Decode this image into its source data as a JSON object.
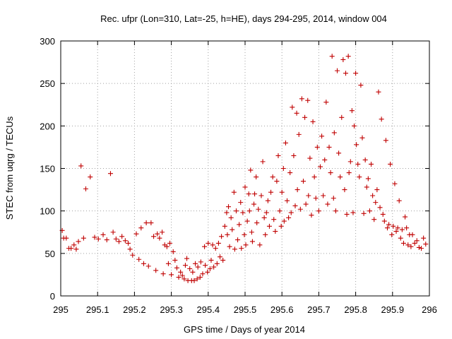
{
  "chart_data": {
    "type": "scatter",
    "title": "Rec. ufpr (Lon=310, Lat=-25, h=HE), days 294-295, 2014, window 004",
    "xlabel": "GPS time / Days of year 2014",
    "ylabel": "STEC from uqrg / TECUs",
    "xlim": [
      295,
      296
    ],
    "ylim": [
      0,
      300
    ],
    "xticks": [
      "295",
      "295.1",
      "295.2",
      "295.3",
      "295.4",
      "295.5",
      "295.6",
      "295.7",
      "295.8",
      "295.9",
      "296"
    ],
    "yticks": [
      "0",
      "50",
      "100",
      "150",
      "200",
      "250",
      "300"
    ],
    "grid": true,
    "marker": "+",
    "color": "#c00000",
    "points": [
      [
        295.004,
        77
      ],
      [
        295.008,
        68
      ],
      [
        295.015,
        68
      ],
      [
        295.022,
        56
      ],
      [
        295.028,
        56
      ],
      [
        295.036,
        60
      ],
      [
        295.042,
        55
      ],
      [
        295.048,
        64
      ],
      [
        295.055,
        153
      ],
      [
        295.062,
        68
      ],
      [
        295.068,
        126
      ],
      [
        295.08,
        140
      ],
      [
        295.092,
        69
      ],
      [
        295.102,
        67
      ],
      [
        295.115,
        72
      ],
      [
        295.125,
        66
      ],
      [
        295.135,
        144
      ],
      [
        295.142,
        75
      ],
      [
        295.15,
        67
      ],
      [
        295.158,
        64
      ],
      [
        295.166,
        70
      ],
      [
        295.175,
        65
      ],
      [
        295.183,
        62
      ],
      [
        295.188,
        55
      ],
      [
        295.195,
        48
      ],
      [
        295.205,
        73
      ],
      [
        295.212,
        43
      ],
      [
        295.218,
        80
      ],
      [
        295.225,
        38
      ],
      [
        295.232,
        86
      ],
      [
        295.238,
        35
      ],
      [
        295.245,
        86
      ],
      [
        295.252,
        70
      ],
      [
        295.258,
        30
      ],
      [
        295.262,
        73
      ],
      [
        295.268,
        68
      ],
      [
        295.275,
        75
      ],
      [
        295.278,
        26
      ],
      [
        295.282,
        60
      ],
      [
        295.288,
        58
      ],
      [
        295.292,
        38
      ],
      [
        295.296,
        62
      ],
      [
        295.3,
        25
      ],
      [
        295.305,
        52
      ],
      [
        295.31,
        42
      ],
      [
        295.315,
        33
      ],
      [
        295.32,
        22
      ],
      [
        295.325,
        28
      ],
      [
        295.33,
        24
      ],
      [
        295.335,
        20
      ],
      [
        295.338,
        36
      ],
      [
        295.342,
        44
      ],
      [
        295.345,
        18
      ],
      [
        295.35,
        32
      ],
      [
        295.355,
        18
      ],
      [
        295.358,
        28
      ],
      [
        295.362,
        18
      ],
      [
        295.365,
        38
      ],
      [
        295.37,
        20
      ],
      [
        295.372,
        34
      ],
      [
        295.378,
        22
      ],
      [
        295.38,
        40
      ],
      [
        295.385,
        26
      ],
      [
        295.39,
        58
      ],
      [
        295.392,
        36
      ],
      [
        295.398,
        28
      ],
      [
        295.4,
        62
      ],
      [
        295.405,
        32
      ],
      [
        295.408,
        42
      ],
      [
        295.412,
        60
      ],
      [
        295.415,
        34
      ],
      [
        295.42,
        56
      ],
      [
        295.424,
        38
      ],
      [
        295.428,
        62
      ],
      [
        295.432,
        46
      ],
      [
        295.436,
        70
      ],
      [
        295.44,
        42
      ],
      [
        295.445,
        82
      ],
      [
        295.45,
        98
      ],
      [
        295.452,
        72
      ],
      [
        295.455,
        105
      ],
      [
        295.458,
        58
      ],
      [
        295.462,
        92
      ],
      [
        295.465,
        78
      ],
      [
        295.47,
        122
      ],
      [
        295.472,
        55
      ],
      [
        295.476,
        100
      ],
      [
        295.48,
        66
      ],
      [
        295.484,
        84
      ],
      [
        295.488,
        110
      ],
      [
        295.49,
        56
      ],
      [
        295.494,
        98
      ],
      [
        295.498,
        72
      ],
      [
        295.5,
        128
      ],
      [
        295.502,
        60
      ],
      [
        295.506,
        88
      ],
      [
        295.51,
        120
      ],
      [
        295.512,
        100
      ],
      [
        295.515,
        148
      ],
      [
        295.518,
        75
      ],
      [
        295.52,
        64
      ],
      [
        295.524,
        108
      ],
      [
        295.526,
        120
      ],
      [
        295.53,
        140
      ],
      [
        295.532,
        86
      ],
      [
        295.536,
        102
      ],
      [
        295.54,
        60
      ],
      [
        295.544,
        118
      ],
      [
        295.548,
        158
      ],
      [
        295.552,
        92
      ],
      [
        295.555,
        72
      ],
      [
        295.558,
        98
      ],
      [
        295.562,
        112
      ],
      [
        295.566,
        82
      ],
      [
        295.57,
        122
      ],
      [
        295.575,
        140
      ],
      [
        295.578,
        90
      ],
      [
        295.582,
        76
      ],
      [
        295.586,
        135
      ],
      [
        295.59,
        165
      ],
      [
        295.594,
        100
      ],
      [
        295.598,
        82
      ],
      [
        295.6,
        122
      ],
      [
        295.604,
        150
      ],
      [
        295.606,
        88
      ],
      [
        295.61,
        180
      ],
      [
        295.614,
        112
      ],
      [
        295.618,
        92
      ],
      [
        295.622,
        145
      ],
      [
        295.625,
        98
      ],
      [
        295.628,
        222
      ],
      [
        295.632,
        165
      ],
      [
        295.636,
        106
      ],
      [
        295.64,
        215
      ],
      [
        295.642,
        125
      ],
      [
        295.646,
        190
      ],
      [
        295.65,
        102
      ],
      [
        295.654,
        232
      ],
      [
        295.658,
        135
      ],
      [
        295.662,
        210
      ],
      [
        295.665,
        108
      ],
      [
        295.67,
        230
      ],
      [
        295.672,
        118
      ],
      [
        295.676,
        162
      ],
      [
        295.68,
        95
      ],
      [
        295.684,
        205
      ],
      [
        295.688,
        140
      ],
      [
        295.692,
        115
      ],
      [
        295.696,
        175
      ],
      [
        295.7,
        100
      ],
      [
        295.704,
        152
      ],
      [
        295.708,
        188
      ],
      [
        295.712,
        118
      ],
      [
        295.716,
        160
      ],
      [
        295.72,
        228
      ],
      [
        295.724,
        108
      ],
      [
        295.728,
        175
      ],
      [
        295.732,
        145
      ],
      [
        295.736,
        282
      ],
      [
        295.74,
        115
      ],
      [
        295.742,
        192
      ],
      [
        295.746,
        100
      ],
      [
        295.75,
        265
      ],
      [
        295.754,
        168
      ],
      [
        295.758,
        140
      ],
      [
        295.762,
        210
      ],
      [
        295.766,
        278
      ],
      [
        295.77,
        125
      ],
      [
        295.773,
        262
      ],
      [
        295.776,
        96
      ],
      [
        295.78,
        282
      ],
      [
        295.782,
        145
      ],
      [
        295.786,
        158
      ],
      [
        295.79,
        218
      ],
      [
        295.793,
        98
      ],
      [
        295.796,
        200
      ],
      [
        295.8,
        262
      ],
      [
        295.802,
        178
      ],
      [
        295.806,
        155
      ],
      [
        295.81,
        140
      ],
      [
        295.814,
        248
      ],
      [
        295.818,
        186
      ],
      [
        295.822,
        97
      ],
      [
        295.826,
        160
      ],
      [
        295.83,
        128
      ],
      [
        295.834,
        138
      ],
      [
        295.838,
        100
      ],
      [
        295.842,
        155
      ],
      [
        295.846,
        118
      ],
      [
        295.85,
        90
      ],
      [
        295.854,
        110
      ],
      [
        295.858,
        125
      ],
      [
        295.862,
        240
      ],
      [
        295.866,
        104
      ],
      [
        295.87,
        208
      ],
      [
        295.874,
        96
      ],
      [
        295.878,
        88
      ],
      [
        295.882,
        183
      ],
      [
        295.886,
        80
      ],
      [
        295.89,
        84
      ],
      [
        295.894,
        155
      ],
      [
        295.898,
        72
      ],
      [
        295.902,
        82
      ],
      [
        295.906,
        132
      ],
      [
        295.91,
        76
      ],
      [
        295.914,
        80
      ],
      [
        295.918,
        112
      ],
      [
        295.922,
        68
      ],
      [
        295.926,
        78
      ],
      [
        295.93,
        62
      ],
      [
        295.934,
        93
      ],
      [
        295.938,
        80
      ],
      [
        295.942,
        60
      ],
      [
        295.946,
        72
      ],
      [
        295.95,
        58
      ],
      [
        295.954,
        72
      ],
      [
        295.96,
        62
      ],
      [
        295.966,
        65
      ],
      [
        295.972,
        57
      ],
      [
        295.978,
        56
      ],
      [
        295.984,
        68
      ],
      [
        295.99,
        61
      ]
    ]
  }
}
